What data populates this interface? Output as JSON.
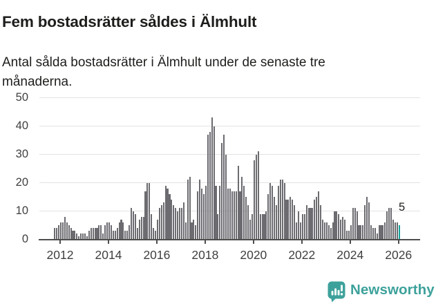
{
  "title": "Fem bostadsrätter såldes i Älmhult",
  "subtitle": "Antal sålda bostadsrätter i Älmhult under de senaste tre månaderna.",
  "chart_data": {
    "type": "bar",
    "title": "Fem bostadsrätter såldes i Älmhult",
    "description": "Antal sålda bostadsrätter i Älmhult, rullande tremånadersvärde per månad",
    "x_start": "2011-10",
    "x_end": "2026-01",
    "x_interval": "monthly",
    "xlabel": "",
    "ylabel": "",
    "ylim": [
      0,
      50
    ],
    "yticks": [
      "0",
      "10",
      "20",
      "30",
      "40",
      "50"
    ],
    "xticks": [
      "2012",
      "2014",
      "2016",
      "2018",
      "2020",
      "2022",
      "2024",
      "2026"
    ],
    "grid": true,
    "legend_position": "none",
    "bar_color": "#6b6b70",
    "highlight_color": "#13a29c",
    "last_label": "5",
    "values": [
      4,
      4,
      5,
      6,
      6,
      8,
      6,
      5,
      4,
      3,
      3,
      2,
      1,
      2,
      2,
      2,
      1,
      3,
      4,
      4,
      4,
      4,
      5,
      5,
      2,
      5,
      6,
      6,
      5,
      3,
      3,
      4,
      6,
      7,
      6,
      3,
      3,
      5,
      11,
      10,
      9,
      4,
      7,
      8,
      8,
      17,
      20,
      20,
      9,
      4,
      3,
      7,
      11,
      12,
      13,
      19,
      18,
      16,
      14,
      12,
      11,
      10,
      11,
      11,
      13,
      6,
      21,
      22,
      6,
      7,
      5,
      17,
      21,
      18,
      16,
      19,
      37,
      38,
      43,
      40,
      19,
      9,
      19,
      34,
      37,
      30,
      18,
      18,
      17,
      17,
      17,
      26,
      17,
      22,
      19,
      15,
      12,
      7,
      9,
      28,
      30,
      31,
      9,
      9,
      9,
      10,
      16,
      20,
      19,
      15,
      12,
      19,
      21,
      21,
      20,
      14,
      14,
      15,
      14,
      12,
      6,
      10,
      6,
      9,
      9,
      12,
      11,
      11,
      11,
      14,
      15,
      17,
      12,
      7,
      6,
      6,
      5,
      4,
      6,
      10,
      10,
      9,
      7,
      8,
      7,
      3,
      3,
      5,
      11,
      11,
      10,
      5,
      5,
      5,
      12,
      15,
      13,
      5,
      4,
      4,
      2,
      5,
      5,
      5,
      6,
      10,
      11,
      11,
      7,
      6,
      6,
      5
    ]
  },
  "footer": {
    "brand": "Newsworthy",
    "logo_icon": "newsworthy-chart-bubble-icon",
    "brand_color": "#3da19b"
  }
}
